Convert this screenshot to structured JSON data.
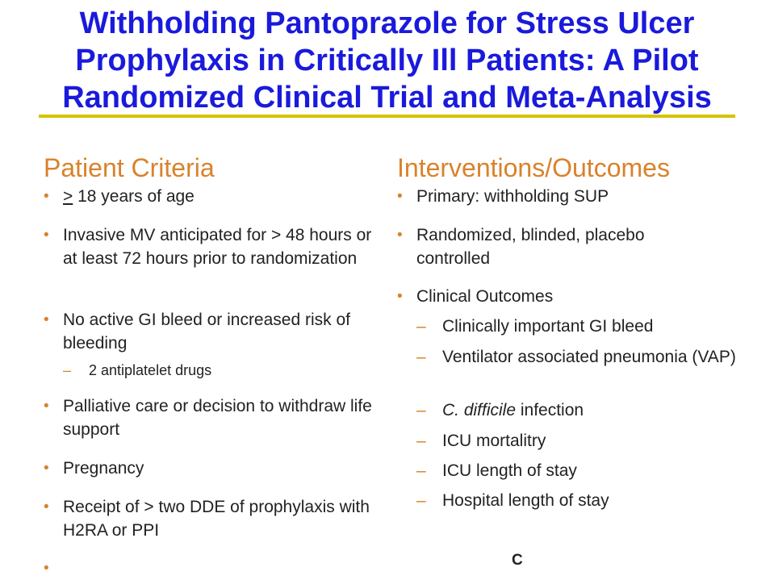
{
  "title": {
    "line1": "Withholding Pantoprazole for Stress Ulcer",
    "line2": "Prophylaxis in Critically Ill Patients: A Pilot",
    "line3": "Randomized Clinical Trial and Meta-Analysis"
  },
  "left": {
    "heading": "Patient Criteria",
    "items": [
      {
        "symbol": ">",
        "text": " 18 years of age"
      },
      {
        "text": "Invasive MV anticipated for > 48 hours or at least 72 hours prior to randomization"
      },
      {
        "text": "No active GI bleed or increased risk of bleeding",
        "sub": "2 antiplatelet drugs"
      },
      {
        "text": "Palliative care or decision to withdraw life support"
      },
      {
        "text": "Pregnancy"
      },
      {
        "text": "Receipt of > two DDE of prophylaxis with H2RA or PPI"
      },
      {
        "text": ""
      }
    ]
  },
  "right": {
    "heading": "Interventions/Outcomes",
    "items": [
      {
        "text": "Primary: withholding SUP"
      },
      {
        "text": "Randomized, blinded, placebo controlled"
      },
      {
        "text": "Clinical Outcomes"
      }
    ],
    "subs": [
      {
        "text": "Clinically important GI bleed"
      },
      {
        "text": "Ventilator associated pneumonia (VAP)"
      },
      {
        "italic": "C. difficile",
        "text": " infection"
      },
      {
        "text": "ICU mortalitry"
      },
      {
        "text": "ICU length of stay"
      },
      {
        "text": "Hospital length of stay"
      }
    ]
  },
  "stray": "C",
  "symbols": {
    "bullet": "•",
    "dash": "–"
  },
  "colors": {
    "title": "#1a1adc",
    "accent": "#d9822b",
    "rule": "#d4c400"
  }
}
